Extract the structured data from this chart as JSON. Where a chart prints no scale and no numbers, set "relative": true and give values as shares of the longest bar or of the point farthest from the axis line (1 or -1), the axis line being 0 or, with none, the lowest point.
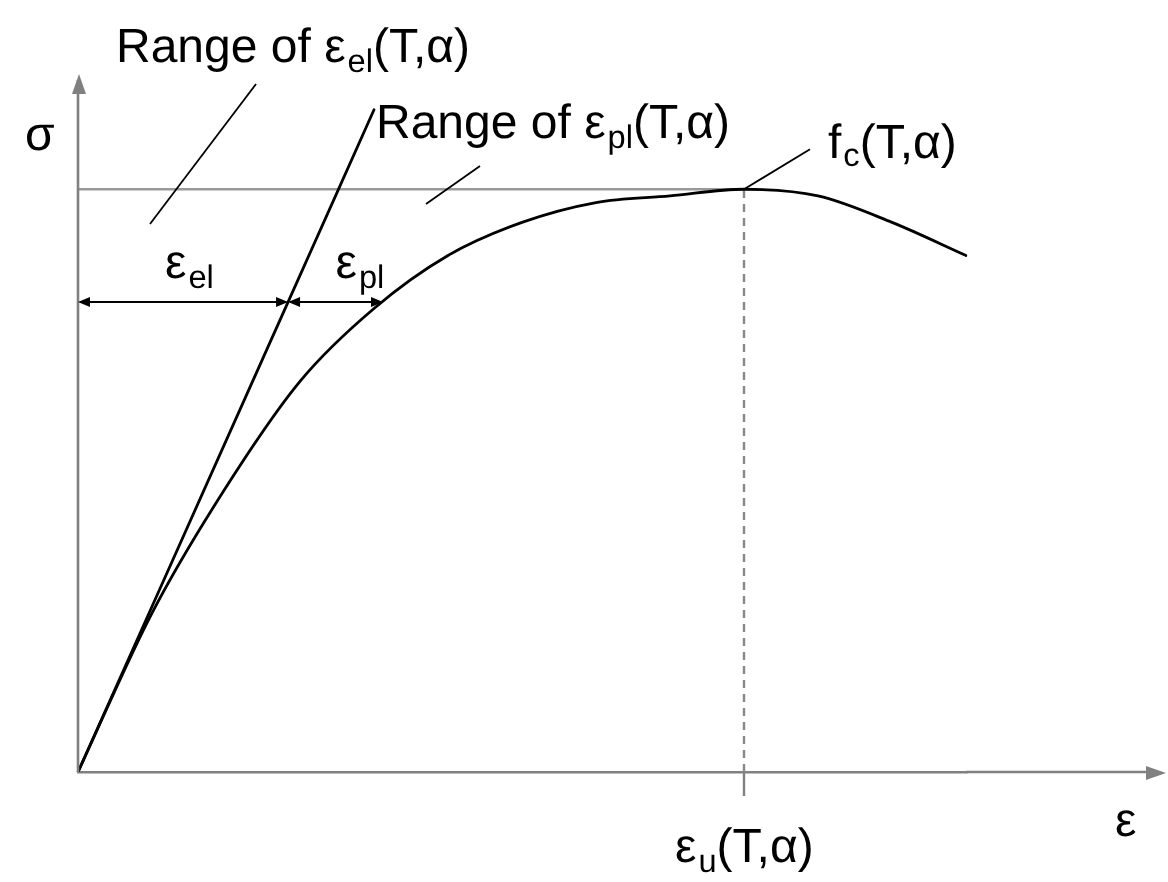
{
  "chart_data": {
    "type": "line",
    "relative": true,
    "xlabel": "ε",
    "ylabel": "σ",
    "categories": [
      null,
      null,
      null,
      null,
      null,
      null,
      null,
      null,
      null,
      null,
      null,
      null,
      null
    ],
    "series": [
      {
        "color": "#000000",
        "values": [
          0,
          0.24,
          0.43,
          0.59,
          0.7,
          0.78,
          0.83,
          0.86,
          0.87,
          0.88,
          0.87,
          0.83,
          0.78
        ]
      },
      {
        "color": "#000000",
        "values": [
          0,
          0.25,
          0.5,
          0.75,
          1,
          null,
          null,
          null,
          null,
          null,
          null,
          null,
          null
        ]
      }
    ],
    "ref_lines": [
      {
        "axis": "y",
        "value": 0.88,
        "color": "#999999"
      }
    ],
    "annotations": [
      "Range of ε$_{el}$(T,α)",
      "Range of ε$_{pl}$(T,α)",
      "f$_{c}$(T,α)",
      "ε$_{el}$",
      "ε$_{pl}$",
      "ε$_{u}$(T,α)"
    ]
  }
}
